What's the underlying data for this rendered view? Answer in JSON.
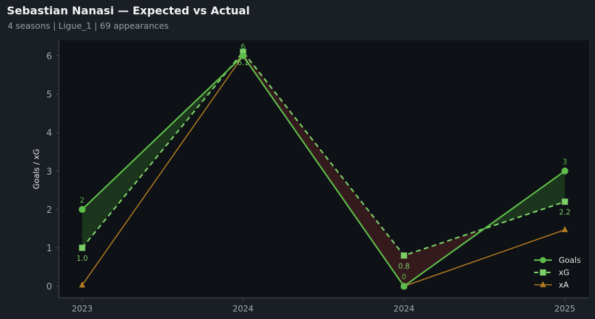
{
  "header": {
    "title": "Sebastian Nanasi — Expected vs Actual",
    "subtitle": "4 seasons | Ligue_1 | 69 appearances"
  },
  "chart_data": {
    "type": "line",
    "title": "Sebastian Nanasi — Expected vs Actual",
    "xlabel": "",
    "ylabel": "Goals / xG",
    "categories": [
      "2023",
      "2024",
      "2024",
      "2025"
    ],
    "yticks": [
      0,
      1,
      2,
      3,
      4,
      5,
      6
    ],
    "ylim": [
      -0.3,
      6.4
    ],
    "grid": false,
    "legend_position": "bottom-right",
    "series": [
      {
        "name": "Goals",
        "values": [
          2,
          6,
          0,
          3
        ],
        "labels": [
          "2",
          "6",
          "0",
          "3"
        ],
        "color": "#5ebd4a",
        "marker": "circle",
        "style": "solid"
      },
      {
        "name": "xG",
        "values": [
          1.0,
          6.1,
          0.8,
          2.2
        ],
        "labels": [
          "1.0",
          "6.1",
          "0.8",
          "2.2"
        ],
        "color": "#7dd068",
        "marker": "square",
        "style": "dashed"
      },
      {
        "name": "xA",
        "values": [
          0.03,
          6.0,
          0.0,
          1.47
        ],
        "color": "#b07a20",
        "marker": "triangle",
        "style": "solid"
      }
    ],
    "colors": {
      "background": "#1a1e25",
      "plot_background": "#0e1116",
      "axis": "#4a4f57",
      "tick_text": "#a6abb2",
      "fill_over": "#1e3a1e",
      "fill_under": "#3a1c1e"
    }
  }
}
